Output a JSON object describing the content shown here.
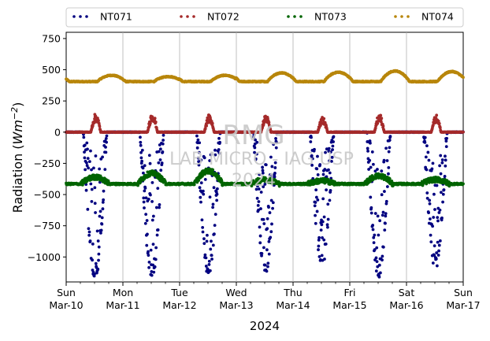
{
  "chart_data": {
    "type": "scatter",
    "title": "",
    "ylabel_main": "Radiation (",
    "ylabel_unit": "Wm",
    "ylabel_exp": "−2",
    "ylabel_close": ")",
    "xlabel": "2024",
    "ylim": [
      -1200,
      800
    ],
    "yticks": [
      -1000,
      -750,
      -500,
      -250,
      0,
      250,
      500,
      750
    ],
    "ytick_labels": [
      "−1000",
      "−750",
      "−500",
      "−250",
      "0",
      "250",
      "500",
      "750"
    ],
    "xlim": [
      "2024-03-10",
      "2024-03-17"
    ],
    "xticks": [
      {
        "day": "Sun",
        "date": "Mar-10"
      },
      {
        "day": "Mon",
        "date": "Mar-11"
      },
      {
        "day": "Tue",
        "date": "Mar-12"
      },
      {
        "day": "Wed",
        "date": "Mar-13"
      },
      {
        "day": "Thu",
        "date": "Mar-14"
      },
      {
        "day": "Fri",
        "date": "Mar-15"
      },
      {
        "day": "Sat",
        "date": "Mar-16"
      },
      {
        "day": "Sun",
        "date": "Mar-17"
      }
    ],
    "grid": "vertical",
    "legend_position": "top",
    "watermark": {
      "line1": "RMG",
      "line2": "LAB MICRO - IAG USP",
      "line3": "2024"
    },
    "series": [
      {
        "name": "NT071",
        "color": "#000080",
        "night_level": 0,
        "day_min": [
          -1190,
          -1180,
          -1170,
          -1150,
          -1080,
          -1170,
          -1100
        ]
      },
      {
        "name": "NT072",
        "color": "#a52a2a",
        "night_level": 0,
        "day_peak": [
          150,
          160,
          140,
          140,
          120,
          150,
          140
        ]
      },
      {
        "name": "NT073",
        "color": "#006400",
        "night_level": -415,
        "day_peak": [
          -360,
          -330,
          -310,
          -380,
          -390,
          -350,
          -380
        ]
      },
      {
        "name": "NT074",
        "color": "#b8860b",
        "night_level": 415,
        "day_peak": [
          455,
          445,
          455,
          475,
          480,
          490,
          485
        ]
      }
    ]
  }
}
